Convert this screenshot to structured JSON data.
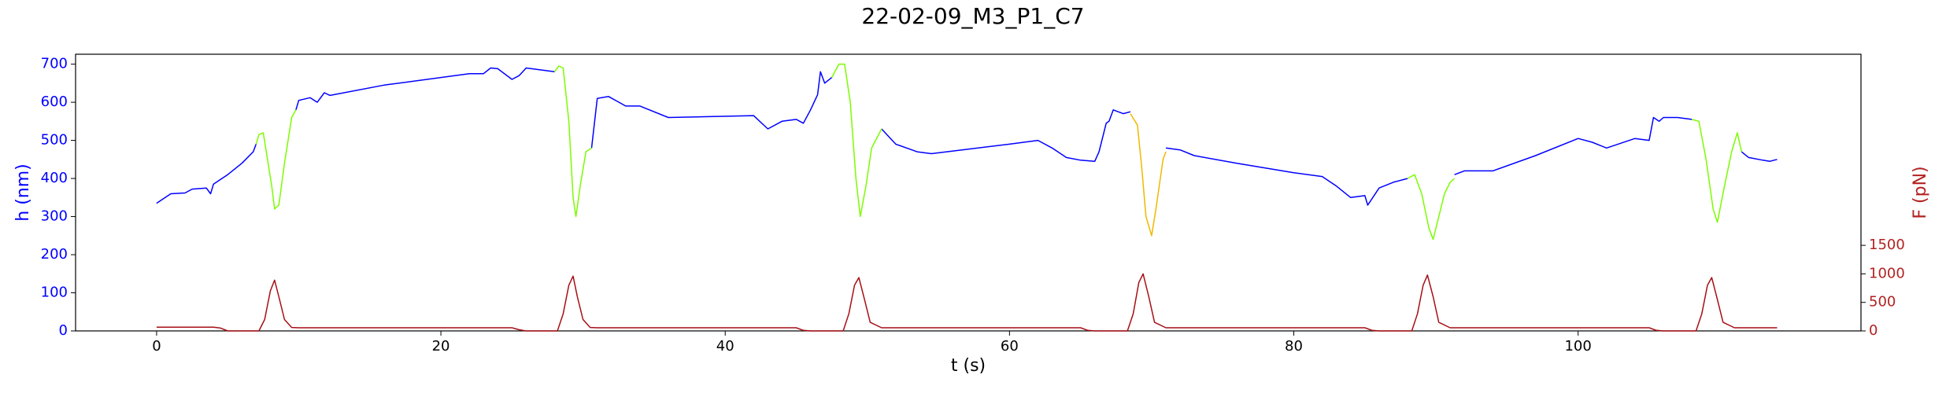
{
  "chart_data": {
    "type": "line",
    "title": "22-02-09_M3_P1_C7",
    "xlabel": "t (s)",
    "ylabel": "h (nm)",
    "y2label": "F (pN)",
    "ylabel_color": "#0000ff",
    "y2label_color": "#b22222",
    "xlim": [
      -5.7,
      119.9
    ],
    "xticks": [
      0,
      20,
      40,
      60,
      80,
      100
    ],
    "ylim": [
      0,
      726
    ],
    "yticks": [
      0,
      100,
      200,
      300,
      400,
      500,
      600,
      700
    ],
    "y2lim": [
      0,
      4850
    ],
    "y2ticks": [
      0,
      500,
      1000,
      1500
    ],
    "series": [
      {
        "color": "#0000ff",
        "axis": "y",
        "x": [
          0,
          1,
          2,
          2.5,
          3.5,
          3.8,
          4.0,
          5,
          6,
          6.8,
          7,
          null,
          9.8,
          10,
          10.8,
          11.3,
          11.8,
          12.2,
          16,
          22,
          23,
          23.5,
          24,
          25,
          25.5,
          26,
          27,
          28,
          null,
          30.6,
          31,
          31.8,
          33,
          34,
          36,
          42,
          43,
          44,
          45,
          45.5,
          46,
          46.5,
          46.7,
          47,
          47.5,
          null,
          51,
          51.5,
          52,
          53.5,
          54.5,
          60,
          62,
          63,
          64,
          65,
          66,
          66.3,
          66.8,
          67,
          67.3,
          68,
          68.5,
          null,
          71,
          72,
          73,
          76,
          80,
          82,
          83,
          84,
          85,
          85.2,
          86,
          87,
          88,
          null,
          91.3,
          92,
          94,
          97,
          100,
          101,
          102,
          104,
          105,
          105.3,
          105.7,
          106,
          107,
          108,
          null,
          111.5,
          112,
          113,
          113.5,
          114
        ],
        "values": [
          335,
          360,
          362,
          372,
          375,
          360,
          385,
          410,
          440,
          470,
          490,
          null,
          580,
          605,
          612,
          600,
          625,
          618,
          645,
          675,
          675,
          690,
          688,
          660,
          670,
          690,
          685,
          680,
          null,
          480,
          610,
          615,
          590,
          590,
          560,
          565,
          530,
          550,
          555,
          545,
          580,
          620,
          680,
          650,
          665,
          null,
          530,
          510,
          490,
          470,
          465,
          490,
          500,
          480,
          455,
          448,
          445,
          470,
          545,
          550,
          580,
          570,
          575,
          null,
          480,
          475,
          460,
          440,
          415,
          405,
          380,
          350,
          355,
          330,
          375,
          390,
          400,
          null,
          410,
          420,
          420,
          460,
          505,
          495,
          480,
          505,
          500,
          560,
          550,
          560,
          560,
          555,
          null,
          470,
          455,
          448,
          445,
          450
        ]
      },
      {
        "color": "#7cfc00",
        "axis": "y",
        "x": [
          7,
          7.2,
          7.5,
          7.8,
          8.1,
          8.3,
          8.6,
          9,
          9.5,
          9.8,
          null,
          28,
          28.3,
          28.6,
          29,
          29.3,
          29.5,
          29.8,
          30.2,
          30.6,
          null,
          47.5,
          48,
          48.4,
          48.8,
          49.2,
          49.5,
          49.9,
          50.3,
          51,
          null,
          88,
          88.5,
          89,
          89.5,
          89.8,
          90.2,
          90.6,
          91,
          91.3,
          null,
          108,
          108.5,
          109,
          109.5,
          109.8,
          110.3,
          110.8,
          111.2,
          111.5
        ],
        "values": [
          490,
          515,
          520,
          450,
          380,
          320,
          330,
          440,
          560,
          580,
          null,
          680,
          695,
          690,
          550,
          350,
          300,
          380,
          470,
          480,
          null,
          665,
          700,
          700,
          600,
          400,
          300,
          380,
          480,
          530,
          null,
          400,
          410,
          360,
          270,
          240,
          300,
          360,
          390,
          400,
          null,
          555,
          550,
          450,
          320,
          285,
          380,
          470,
          520,
          470
        ]
      },
      {
        "color": "#f0b800",
        "axis": "y",
        "x": [
          68.5,
          69,
          69.3,
          69.6,
          70,
          70.3,
          70.8,
          71
        ],
        "values": [
          570,
          540,
          430,
          300,
          250,
          320,
          450,
          470
        ]
      },
      {
        "color": "#a50f15",
        "axis": "y2",
        "x": [
          0,
          4,
          4.5,
          5,
          7.2,
          7.6,
          8,
          8.3,
          8.6,
          9,
          9.5,
          10,
          25,
          25.5,
          26,
          28.2,
          28.6,
          29,
          29.3,
          29.6,
          30,
          30.5,
          31,
          45,
          45.5,
          46,
          48.3,
          48.7,
          49.1,
          49.4,
          49.8,
          50.2,
          51,
          65,
          65.5,
          66,
          68.3,
          68.7,
          69.1,
          69.4,
          69.8,
          70.2,
          71,
          85,
          85.5,
          86,
          88.3,
          88.7,
          89.1,
          89.4,
          89.8,
          90.2,
          91,
          105,
          105.5,
          106,
          108.3,
          108.7,
          109.1,
          109.4,
          109.8,
          110.2,
          111,
          114
        ],
        "values": [
          65,
          65,
          50,
          0,
          0,
          200,
          700,
          890,
          600,
          200,
          60,
          55,
          55,
          20,
          0,
          0,
          300,
          800,
          960,
          600,
          200,
          60,
          55,
          55,
          10,
          0,
          0,
          300,
          800,
          935,
          550,
          150,
          55,
          55,
          10,
          0,
          0,
          300,
          850,
          1000,
          600,
          150,
          55,
          55,
          10,
          0,
          0,
          300,
          800,
          980,
          600,
          150,
          55,
          55,
          10,
          0,
          0,
          300,
          800,
          935,
          550,
          150,
          55,
          55
        ]
      }
    ]
  }
}
